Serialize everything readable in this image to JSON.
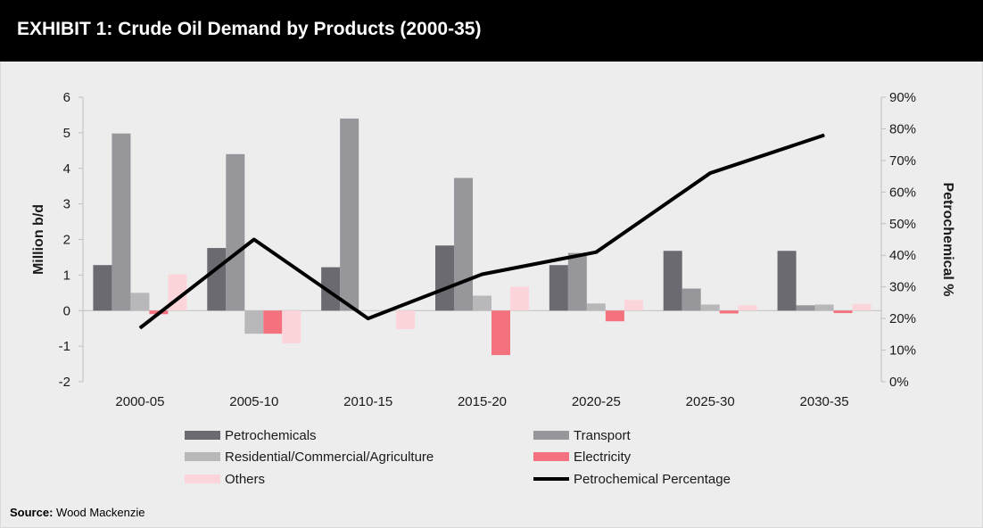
{
  "header": {
    "title": "EXHIBIT 1: Crude Oil Demand by Products (2000-35)"
  },
  "source": {
    "label": "Source:",
    "text": "Wood Mackenzie"
  },
  "colors": {
    "Petrochemicals": "#6b6a70",
    "Transport": "#97969b",
    "Residential/Commercial/Agriculture": "#b8b8ba",
    "Electricity": "#f4717e",
    "Others": "#fcd5da",
    "Petrochemical Percentage": "#000000"
  },
  "chart_data": {
    "type": "bar",
    "categories": [
      "2000-05",
      "2005-10",
      "2010-15",
      "2015-20",
      "2020-25",
      "2025-30",
      "2030-35"
    ],
    "ylabel": "Million b/d",
    "y2label": "Petrochemical %",
    "ylim": [
      -2,
      6
    ],
    "y2lim": [
      0,
      90
    ],
    "yticks": [
      "-2",
      "-1",
      "0",
      "1",
      "2",
      "3",
      "4",
      "5",
      "6"
    ],
    "y2ticks": [
      "0%",
      "10%",
      "20%",
      "30%",
      "40%",
      "50%",
      "60%",
      "70%",
      "80%",
      "90%"
    ],
    "series": [
      {
        "name": "Petrochemicals",
        "values": [
          1.28,
          1.76,
          1.22,
          1.83,
          1.28,
          1.68,
          1.68
        ]
      },
      {
        "name": "Transport",
        "values": [
          4.98,
          4.4,
          5.4,
          3.73,
          1.62,
          0.62,
          0.15
        ]
      },
      {
        "name": "Residential/Commercial/Agriculture",
        "values": [
          0.5,
          -0.65,
          0.0,
          0.42,
          0.2,
          0.17,
          0.17
        ]
      },
      {
        "name": "Electricity",
        "values": [
          -0.1,
          -0.65,
          0.0,
          -1.25,
          -0.3,
          -0.08,
          -0.07
        ]
      },
      {
        "name": "Others",
        "values": [
          1.02,
          -0.92,
          -0.52,
          0.67,
          0.3,
          0.15,
          0.19
        ]
      }
    ],
    "line": {
      "name": "Petrochemical Percentage",
      "values": [
        17,
        45,
        20,
        34,
        41,
        66,
        78
      ]
    },
    "legend": [
      {
        "label": "Petrochemicals",
        "kind": "bar"
      },
      {
        "label": "Transport",
        "kind": "bar"
      },
      {
        "label": "Residential/Commercial/Agriculture",
        "kind": "bar"
      },
      {
        "label": "Electricity",
        "kind": "bar"
      },
      {
        "label": "Others",
        "kind": "bar"
      },
      {
        "label": "Petrochemical Percentage",
        "kind": "line"
      }
    ],
    "legend_position": "bottom",
    "grid": false
  }
}
